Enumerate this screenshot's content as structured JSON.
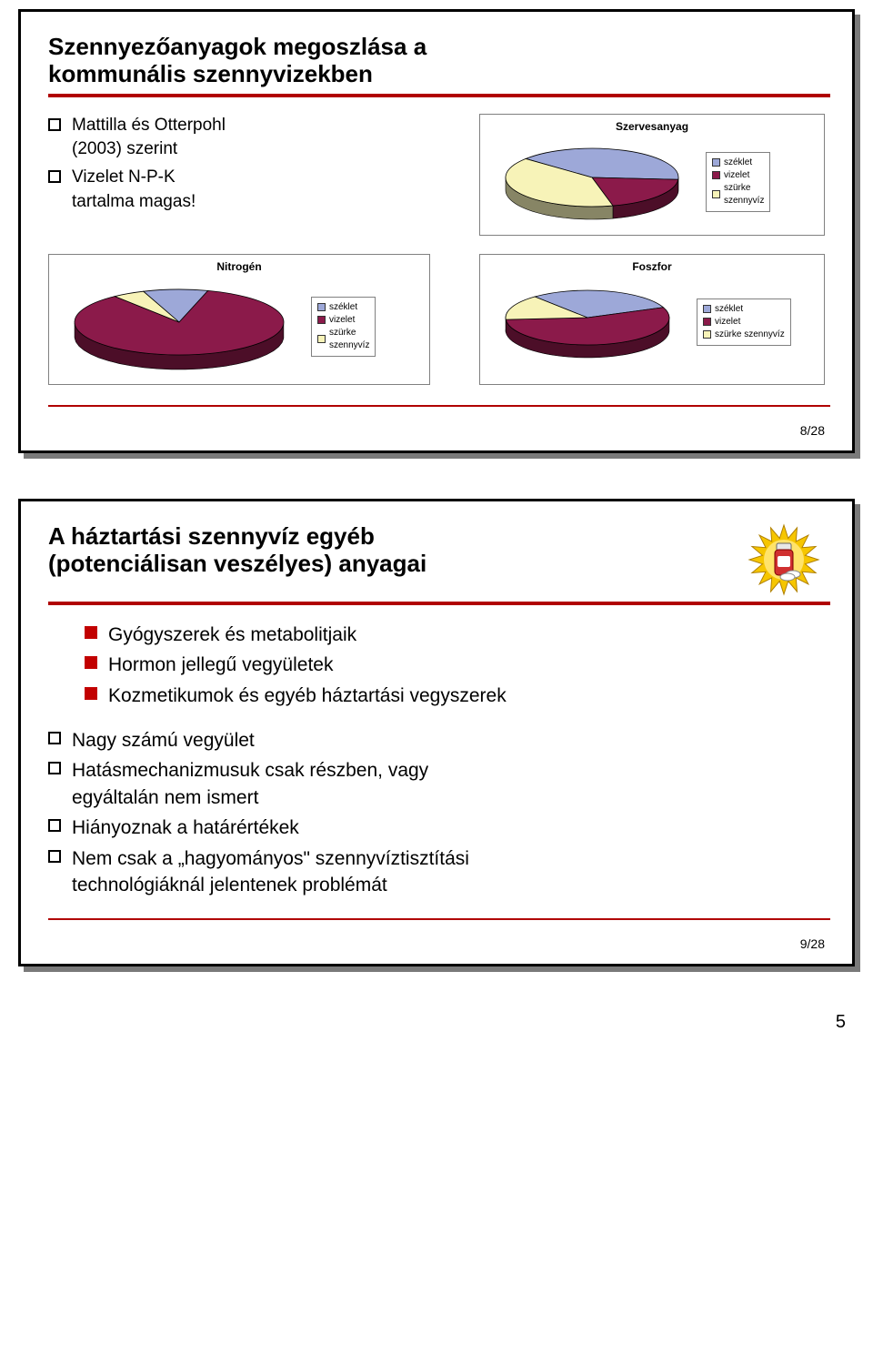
{
  "slide8": {
    "title_l1": "Szennyezőanyagok megoszlása a",
    "title_l2": "kommunális szennyvizekben",
    "bullets": {
      "b1_l1": "Mattilla és Otterpohl",
      "b1_l2": "(2003) szerint",
      "b2_l1": "Vizelet N-P-K",
      "b2_l2": "tartalma magas!"
    },
    "page": "8/28",
    "legend": {
      "l1": "széklet",
      "l2": "vizelet",
      "l3_l1": "szürke",
      "l3_l2": "szennyvíz",
      "l3_compact": "szürke szennyvíz"
    },
    "colors": {
      "szeklet": "#9da8d8",
      "vizelet": "#8b1a4a",
      "szurke": "#f7f3b8",
      "edge": "#000000",
      "rim": "#6a6a7a"
    },
    "chart_szervesanyag": {
      "title": "Szervesanyag",
      "type": "pie",
      "slices": [
        {
          "label": "széklet",
          "value": 40,
          "color": "#9da8d8"
        },
        {
          "label": "vizelet",
          "value": 20,
          "color": "#8b1a4a"
        },
        {
          "label": "szürke szennyvíz",
          "value": 40,
          "color": "#f7f3b8"
        }
      ],
      "start_angle": 220
    },
    "chart_nitrogen": {
      "title": "Nitrogén",
      "type": "pie",
      "slices": [
        {
          "label": "széklet",
          "value": 10,
          "color": "#9da8d8"
        },
        {
          "label": "vizelet",
          "value": 85,
          "color": "#8b1a4a"
        },
        {
          "label": "szürke szennyvíz",
          "value": 5,
          "color": "#f7f3b8"
        }
      ],
      "start_angle": 250
    },
    "chart_foszfor": {
      "title": "Foszfor",
      "type": "pie",
      "slices": [
        {
          "label": "széklet",
          "value": 30,
          "color": "#9da8d8"
        },
        {
          "label": "vizelet",
          "value": 55,
          "color": "#8b1a4a"
        },
        {
          "label": "szürke szennyvíz",
          "value": 15,
          "color": "#f7f3b8"
        }
      ],
      "start_angle": 230
    }
  },
  "slide9": {
    "title_l1": "A háztartási szennyvíz egyéb",
    "title_l2": "(potenciálisan veszélyes) anyagai",
    "solid_bullets": {
      "s1": "Gyógyszerek és metabolitjaik",
      "s2": "Hormon jellegű vegyületek",
      "s3": "Kozmetikumok és egyéb háztartási vegyszerek"
    },
    "hollow_bullets": {
      "h1": "Nagy számú vegyület",
      "h2_l1": "Hatásmechanizmusuk csak részben, vagy",
      "h2_l2": "egyáltalán nem ismert",
      "h3": "Hiányoznak a határértékek",
      "h4_l1": "Nem csak a „hagyományos\" szennyvíztisztítási",
      "h4_l2": "technológiáknál jelentenek problémát"
    },
    "page": "9/28",
    "icon": {
      "burst_color": "#f6c600",
      "bottle_fill": "#d03030",
      "bottle_cap": "#e8e8e8",
      "pill_fill": "#ffffff"
    }
  },
  "global_page": "5"
}
